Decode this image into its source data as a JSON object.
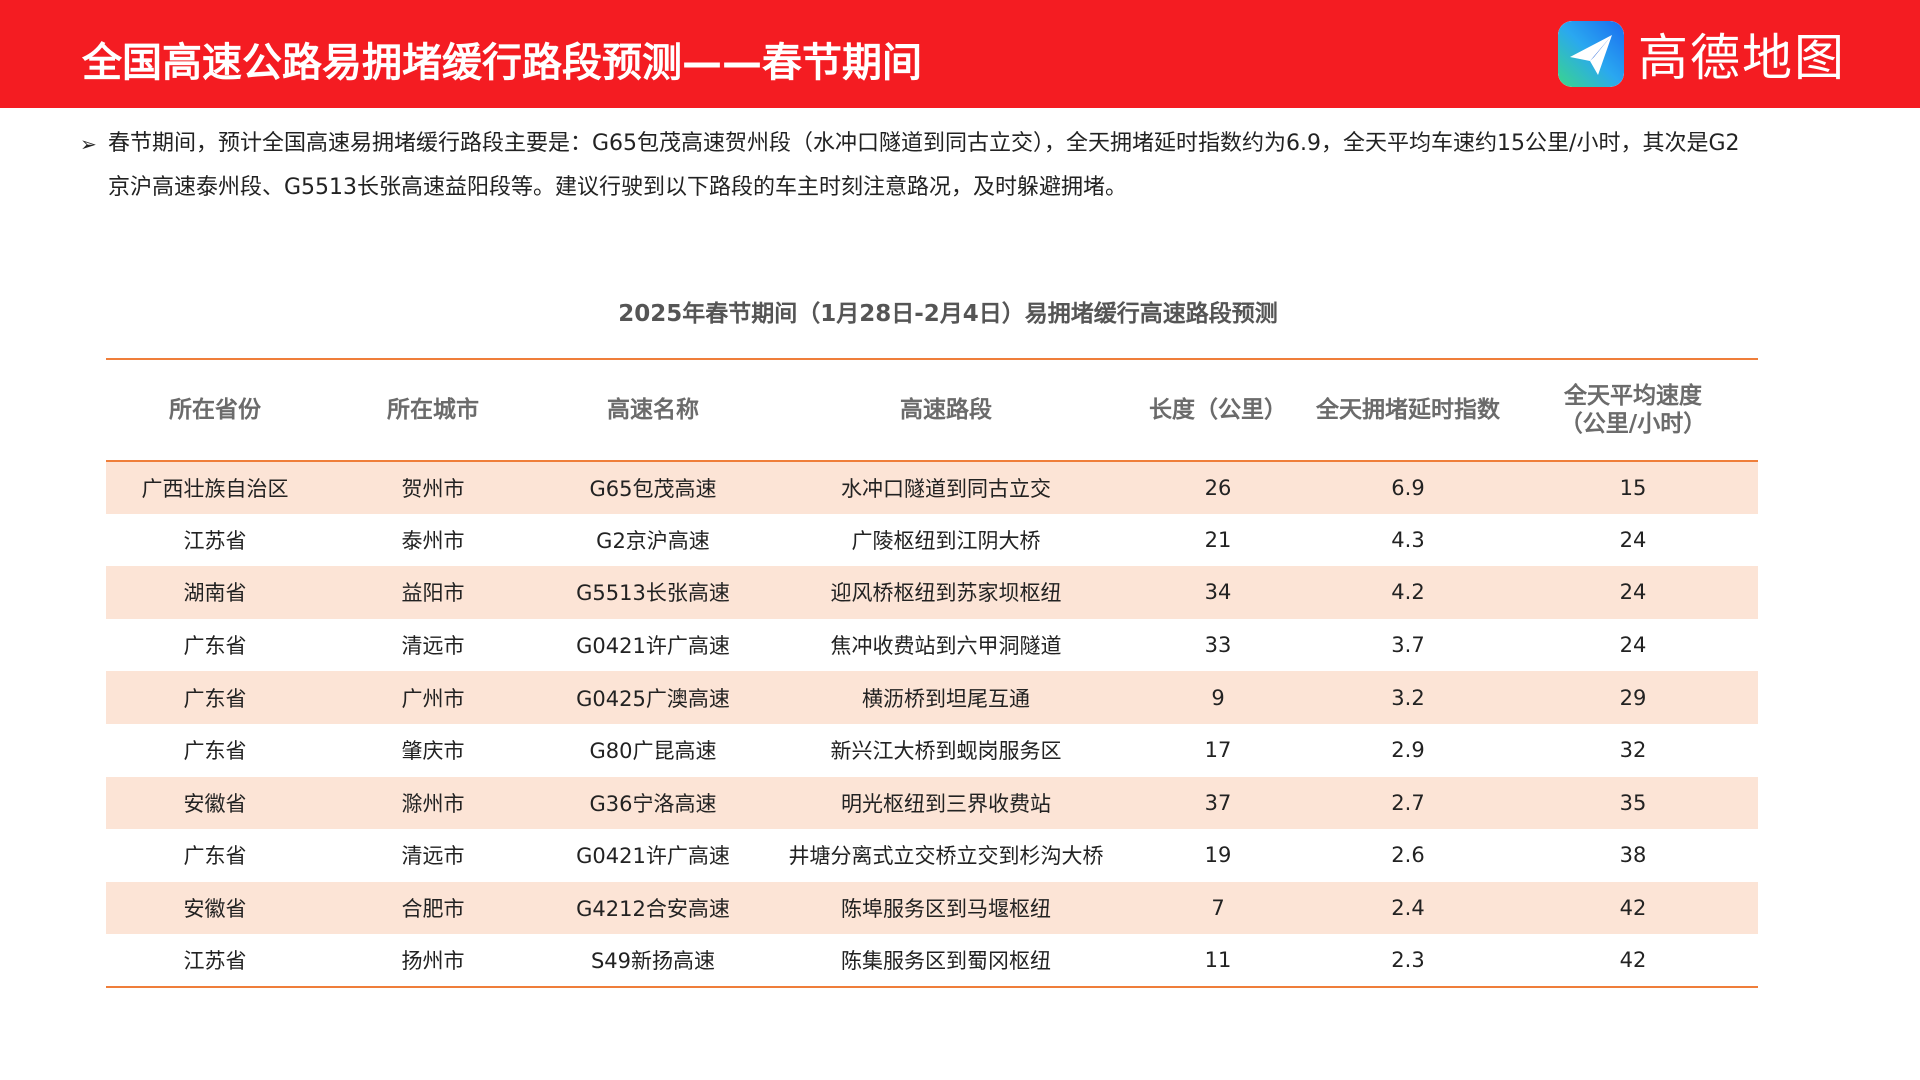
{
  "header": {
    "title": "全国高速公路易拥堵缓行路段预测——春节期间",
    "brand_name": "高德地图",
    "logo_icon": "amap-paper-plane-icon",
    "colors": {
      "header_bg": "#f41c22",
      "accent_line": "#ef7e3a",
      "stripe_row": "#fce4d6"
    }
  },
  "summary": {
    "bullet": "➢",
    "text": "春节期间，预计全国高速易拥堵缓行路段主要是：G65包茂高速贺州段（水冲口隧道到同古立交），全天拥堵延时指数约为6.9，全天平均车速约15公里/小时，其次是G2京沪高速泰州段、G5513长张高速益阳段等。建议行驶到以下路段的车主时刻注意路况，及时躲避拥堵。"
  },
  "table": {
    "title": "2025年春节期间（1月28日-2月4日）易拥堵缓行高速路段预测",
    "headers": [
      "所在省份",
      "所在城市",
      "高速名称",
      "高速路段",
      "长度（公里）",
      "全天拥堵延时指数",
      "全天平均速度\n（公里/小时）"
    ],
    "rows": [
      [
        "广西壮族自治区",
        "贺州市",
        "G65包茂高速",
        "水冲口隧道到同古立交",
        "26",
        "6.9",
        "15"
      ],
      [
        "江苏省",
        "泰州市",
        "G2京沪高速",
        "广陵枢纽到江阴大桥",
        "21",
        "4.3",
        "24"
      ],
      [
        "湖南省",
        "益阳市",
        "G5513长张高速",
        "迎风桥枢纽到苏家坝枢纽",
        "34",
        "4.2",
        "24"
      ],
      [
        "广东省",
        "清远市",
        "G0421许广高速",
        "焦冲收费站到六甲洞隧道",
        "33",
        "3.7",
        "24"
      ],
      [
        "广东省",
        "广州市",
        "G0425广澳高速",
        "横沥桥到坦尾互通",
        "9",
        "3.2",
        "29"
      ],
      [
        "广东省",
        "肇庆市",
        "G80广昆高速",
        "新兴江大桥到蚬岗服务区",
        "17",
        "2.9",
        "32"
      ],
      [
        "安徽省",
        "滁州市",
        "G36宁洛高速",
        "明光枢纽到三界收费站",
        "37",
        "2.7",
        "35"
      ],
      [
        "广东省",
        "清远市",
        "G0421许广高速",
        "井塘分离式立交桥立交到杉沟大桥",
        "19",
        "2.6",
        "38"
      ],
      [
        "安徽省",
        "合肥市",
        "G4212合安高速",
        "陈埠服务区到马堰枢纽",
        "7",
        "2.4",
        "42"
      ],
      [
        "江苏省",
        "扬州市",
        "S49新扬高速",
        "陈集服务区到蜀冈枢纽",
        "11",
        "2.3",
        "42"
      ]
    ]
  }
}
